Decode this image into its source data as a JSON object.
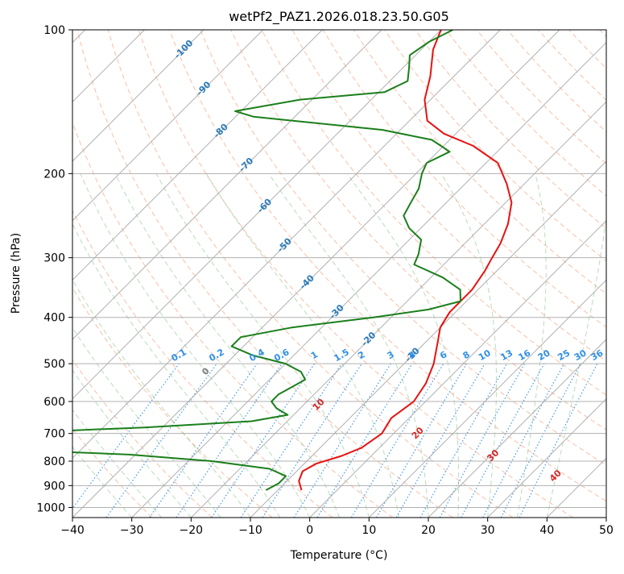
{
  "chart_data": {
    "type": "line",
    "title": "wetPf2_PAZ1.2026.018.23.50.G05",
    "xlabel": "Temperature (°C)",
    "ylabel": "Pressure (hPa)",
    "xlim": [
      -40,
      50
    ],
    "ylim": [
      1050,
      100
    ],
    "y_scale": "log",
    "x_ticks": [
      -40,
      -30,
      -20,
      -10,
      0,
      10,
      20,
      30,
      40,
      50
    ],
    "x_tick_labels": [
      "−40",
      "−30",
      "−20",
      "−10",
      "0",
      "10",
      "20",
      "30",
      "40",
      "50"
    ],
    "y_ticks": [
      100,
      200,
      300,
      400,
      500,
      600,
      700,
      800,
      900,
      1000
    ],
    "y_tick_labels": [
      "100",
      "200",
      "300",
      "400",
      "500",
      "600",
      "700",
      "800",
      "900",
      "1000"
    ],
    "grid": true,
    "skew_degrees": 45,
    "series": [
      {
        "color": "#e8110f",
        "points": [
          [
            -6,
            920
          ],
          [
            -8,
            880
          ],
          [
            -9,
            840
          ],
          [
            -8,
            810
          ],
          [
            -5,
            780
          ],
          [
            -3,
            750
          ],
          [
            -2,
            700
          ],
          [
            -3,
            650
          ],
          [
            -2,
            600
          ],
          [
            -3,
            550
          ],
          [
            -5,
            500
          ],
          [
            -8,
            450
          ],
          [
            -10,
            420
          ],
          [
            -11,
            390
          ],
          [
            -11,
            350
          ],
          [
            -12,
            320
          ],
          [
            -13,
            300
          ],
          [
            -14,
            280
          ],
          [
            -16,
            255
          ],
          [
            -19,
            230
          ],
          [
            -23,
            210
          ],
          [
            -28,
            190
          ],
          [
            -35,
            175
          ],
          [
            -42,
            165
          ],
          [
            -47,
            155
          ],
          [
            -51,
            140
          ],
          [
            -54,
            125
          ],
          [
            -58,
            110
          ],
          [
            -60,
            100
          ]
        ]
      },
      {
        "color": "#1a7f1a",
        "points": [
          [
            -12,
            920
          ],
          [
            -11,
            890
          ],
          [
            -11,
            860
          ],
          [
            -15,
            830
          ],
          [
            -26,
            800
          ],
          [
            -41,
            775
          ],
          [
            -70,
            750
          ],
          [
            -88,
            730
          ],
          [
            -75,
            720
          ],
          [
            -67,
            700
          ],
          [
            -43,
            680
          ],
          [
            -26,
            660
          ],
          [
            -21,
            640
          ],
          [
            -24,
            620
          ],
          [
            -26,
            600
          ],
          [
            -26,
            580
          ],
          [
            -25,
            560
          ],
          [
            -24,
            540
          ],
          [
            -26,
            520
          ],
          [
            -30,
            500
          ],
          [
            -37,
            480
          ],
          [
            -42,
            460
          ],
          [
            -42,
            440
          ],
          [
            -35,
            420
          ],
          [
            -23,
            400
          ],
          [
            -15,
            385
          ],
          [
            -11,
            370
          ],
          [
            -13,
            350
          ],
          [
            -18,
            330
          ],
          [
            -25,
            310
          ],
          [
            -26,
            295
          ],
          [
            -28,
            275
          ],
          [
            -32,
            260
          ],
          [
            -35,
            245
          ],
          [
            -36,
            230
          ],
          [
            -37,
            215
          ],
          [
            -39,
            200
          ],
          [
            -40,
            190
          ],
          [
            -38,
            180
          ],
          [
            -43,
            170
          ],
          [
            -53,
            162
          ],
          [
            -77,
            152
          ],
          [
            -81,
            148
          ],
          [
            -72,
            140
          ],
          [
            -59,
            135
          ],
          [
            -57,
            128
          ],
          [
            -59,
            120
          ],
          [
            -61,
            113
          ],
          [
            -60,
            106
          ],
          [
            -58,
            100
          ]
        ]
      }
    ],
    "isotherm_labels": [
      "-100",
      "-90",
      "-80",
      "-70",
      "-60",
      "-50",
      "-40",
      "-30",
      "-20",
      "-10"
    ],
    "mixing_ratio_labels": [
      "0.1",
      "0.2",
      "0.4",
      "0.6",
      "1",
      "1.5",
      "2",
      "3",
      "4",
      "6",
      "8",
      "10",
      "13",
      "16",
      "20",
      "25",
      "30",
      "36"
    ],
    "moist_adiabat_labels": [
      "0",
      "10",
      "20",
      "30",
      "40"
    ]
  }
}
